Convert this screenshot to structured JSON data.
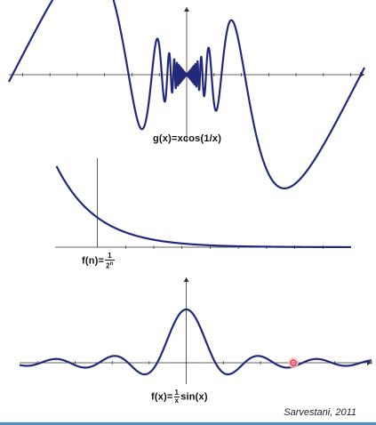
{
  "chart_data": [
    {
      "type": "line",
      "title": "g(x)=xcos(1/x)",
      "xlabel": "",
      "ylabel": "",
      "x": [
        -0.65,
        -0.5,
        -0.318,
        -0.2,
        -0.1,
        -0.05,
        0.05,
        0.1,
        0.2,
        0.318,
        0.5,
        0.65
      ],
      "series": [
        {
          "values": [
            0.02,
            0.21,
            0.0,
            -0.06,
            -0.08,
            0.02,
            -0.02,
            0.08,
            0.06,
            0.0,
            -0.21,
            -0.02
          ]
        }
      ],
      "xlim": [
        -0.65,
        0.65
      ],
      "ylim": [
        -0.2,
        0.2
      ],
      "line_color": "#22287a"
    },
    {
      "type": "line",
      "title": "f(n)=",
      "title_num": "1",
      "title_den": "2",
      "title_exp": "n",
      "xlabel": "",
      "ylabel": "",
      "x": [
        -1.5,
        -1,
        0,
        1,
        2,
        3,
        4,
        5,
        6,
        7
      ],
      "series": [
        {
          "values": [
            2.83,
            2,
            1,
            0.5,
            0.25,
            0.125,
            0.0625,
            0.03,
            0.016,
            0.008
          ]
        }
      ],
      "xlim": [
        -1.5,
        9
      ],
      "ylim": [
        0,
        3
      ],
      "line_color": "#22287a"
    },
    {
      "type": "line",
      "title": "f(x)=",
      "title_num": "1",
      "title_den": "x",
      "title_rest": "sin(x)",
      "xlabel": "",
      "ylabel": "",
      "x": [
        -18,
        -12,
        -6.3,
        -4.5,
        0,
        4.5,
        6.3,
        12,
        18
      ],
      "series": [
        {
          "values": [
            -0.04,
            0.05,
            0.0,
            -0.22,
            1,
            -0.22,
            0.0,
            0.05,
            -0.04
          ]
        }
      ],
      "xlim": [
        -18,
        20
      ],
      "ylim": [
        -0.4,
        1.6
      ],
      "line_color": "#22287a"
    }
  ],
  "credit": "Sarvestani, 2011",
  "colors": {
    "curve": "#22287a",
    "axis": "#333333",
    "cursor": "#e23a4a",
    "bar": "#4a90c8"
  }
}
